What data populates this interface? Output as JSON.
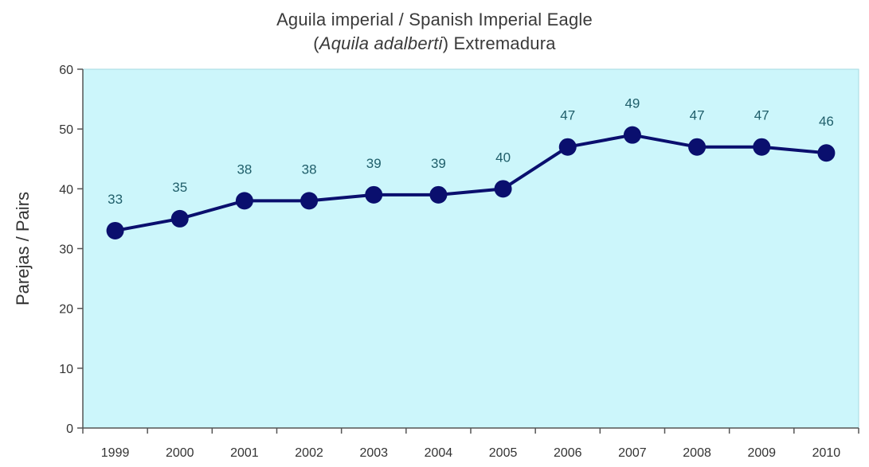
{
  "chart_data": {
    "type": "line",
    "title": "Aguila imperial / Spanish Imperial Eagle",
    "subtitle_species": "Aquila adalberti",
    "subtitle_region": "Extremadura",
    "xlabel": "",
    "ylabel": "Parejas / Pairs",
    "ylim": [
      0,
      60
    ],
    "yticks": [
      "0",
      "10",
      "20",
      "30",
      "40",
      "50",
      "60"
    ],
    "categories": [
      "1999",
      "2000",
      "2001",
      "2002",
      "2003",
      "2004",
      "2005",
      "2006",
      "2007",
      "2008",
      "2009",
      "2010"
    ],
    "series": [
      {
        "values": [
          33,
          35,
          38,
          38,
          39,
          39,
          40,
          47,
          49,
          47,
          47,
          46
        ],
        "labels": [
          "33",
          "35",
          "38",
          "38",
          "39",
          "39",
          "40",
          "47",
          "49",
          "47",
          "47",
          "46"
        ]
      }
    ],
    "grid": false,
    "legend": "none",
    "colors": {
      "plot_background": "#ccf6fb",
      "plot_border": "#a6d9e2",
      "line": "#0a0f6e",
      "marker": "#0a0f6e",
      "data_label": "#1f5e6a"
    }
  }
}
